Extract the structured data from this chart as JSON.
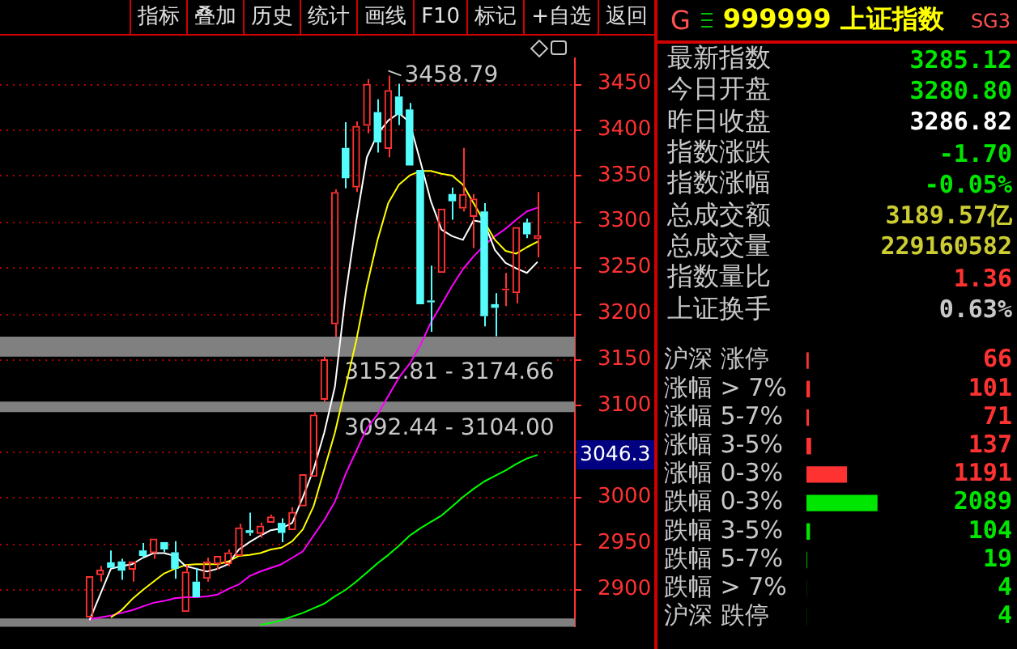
{
  "chart_data": [
    {
      "type": "other",
      "annotations": [
        "指标",
        "叠加",
        "历史",
        "统计",
        "画线",
        "F10",
        "标记",
        "+自选",
        "返回"
      ]
    },
    {
      "type": "candlestick",
      "categories": [
        null,
        null,
        null,
        null,
        null,
        null,
        null,
        null,
        null,
        null,
        null,
        null,
        null,
        null,
        null,
        null,
        null,
        null,
        null,
        null,
        null,
        null,
        null,
        null,
        null,
        null,
        null,
        null,
        null,
        null,
        null,
        null,
        null,
        null,
        null,
        null,
        null,
        null,
        null,
        null,
        null,
        null,
        null,
        null,
        null,
        null
      ],
      "ohlc": [
        [
          2869,
          2914,
          2869,
          2914
        ],
        [
          2915,
          2925,
          2908,
          2921
        ],
        [
          2929,
          2942,
          2923,
          2923
        ],
        [
          2930,
          2933,
          2910,
          2920
        ],
        [
          2921,
          2930,
          2908,
          2930
        ],
        [
          2942,
          2950,
          2934,
          2936
        ],
        [
          2939,
          2955,
          2933,
          2955
        ],
        [
          2951,
          2951,
          2940,
          2943
        ],
        [
          2940,
          2952,
          2911,
          2922
        ],
        [
          2875,
          2926,
          2875,
          2919
        ],
        [
          2908,
          2923,
          2891,
          2891
        ],
        [
          2911,
          2934,
          2908,
          2930
        ],
        [
          2927,
          2936,
          2921,
          2936
        ],
        [
          2927,
          2943,
          2925,
          2940
        ],
        [
          2936,
          2971,
          2936,
          2967
        ],
        [
          2964,
          2983,
          2958,
          2961
        ],
        [
          2960,
          2972,
          2956,
          2969
        ],
        [
          2972,
          2981,
          2972,
          2979
        ],
        [
          2972,
          2977,
          2951,
          2961
        ],
        [
          2964,
          2989,
          2964,
          2984
        ],
        [
          2990,
          3025,
          2990,
          3025
        ],
        [
          3022,
          3092.44,
          3022,
          3090
        ],
        [
          3106,
          3152.81,
          3104,
          3150
        ],
        [
          3188,
          3335,
          3174.66,
          3332
        ],
        [
          3380,
          3408,
          3336,
          3347
        ],
        [
          3337,
          3409,
          3332,
          3404
        ],
        [
          3404,
          3455,
          3396,
          3450
        ],
        [
          3419,
          3433,
          3375,
          3386
        ],
        [
          3379,
          3458.79,
          3370,
          3443
        ],
        [
          3436,
          3450,
          3405,
          3416
        ],
        [
          3422,
          3429,
          3361,
          3361
        ],
        [
          3356,
          3356,
          3210,
          3210
        ],
        [
          3214,
          3252,
          3180,
          3212
        ],
        [
          3244,
          3314,
          3244,
          3314
        ],
        [
          3330,
          3337,
          3302,
          3322
        ],
        [
          3314,
          3380,
          3311,
          3330
        ],
        [
          3305,
          3330,
          3271,
          3325
        ],
        [
          3311,
          3320,
          3186,
          3197
        ],
        [
          3210,
          3222,
          3175,
          3206
        ],
        [
          3225,
          3244,
          3208,
          3227
        ],
        [
          3222,
          3294,
          3211,
          3294
        ],
        [
          3299,
          3303,
          3282,
          3286
        ],
        [
          3280.8,
          3332,
          3261,
          3285.12
        ],
        null,
        null,
        null
      ],
      "colors": [
        "#ff3232",
        "#ff3232",
        "#54fcfc",
        "#54fcfc",
        "#ff3232",
        "#54fcfc",
        "#ff3232",
        "#54fcfc",
        "#54fcfc",
        "#ff3232",
        "#54fcfc",
        "#ff3232",
        "#ff3232",
        "#ff3232",
        "#ff3232",
        "#54fcfc",
        "#ff3232",
        "#ff3232",
        "#54fcfc",
        "#ff3232",
        "#ff3232",
        "#ff3232",
        "#ff3232",
        "#ff3232",
        "#54fcfc",
        "#ff3232",
        "#ff3232",
        "#54fcfc",
        "#ff3232",
        "#54fcfc",
        "#54fcfc",
        "#54fcfc",
        "#54fcfc",
        "#ff3232",
        "#54fcfc",
        "#ff3232",
        "#ff3232",
        "#54fcfc",
        "#54fcfc",
        "#ff3232",
        "#ff3232",
        "#54fcfc",
        "#ff3232",
        null,
        null,
        null
      ],
      "series": [
        {
          "type": "line",
          "color": "#ffffff",
          "values": [
            2866,
            2894,
            2922,
            2925,
            2927,
            2934,
            2939,
            2939,
            2936,
            2925,
            2922,
            2919,
            2922,
            2927,
            2943,
            2951,
            2958,
            2964,
            2966,
            2972,
            3000,
            3030,
            3070,
            3120,
            3220,
            3300,
            3370,
            3395,
            3410,
            3418,
            3408,
            3366,
            3322,
            3291,
            3284,
            3280,
            3301,
            3299,
            3269,
            3255,
            3249,
            3244,
            3256,
            null,
            null,
            null
          ]
        },
        {
          "type": "line",
          "color": "#ffff00",
          "values": [
            null,
            null,
            2869,
            2877,
            2889,
            2899,
            2908,
            2917,
            2922,
            2926,
            2927,
            2927,
            2927,
            2930,
            2936,
            2937,
            2939,
            2943,
            2945,
            2952,
            2965,
            2990,
            3030,
            3070,
            3120,
            3170,
            3230,
            3280,
            3320,
            3340,
            3350,
            3355,
            3355,
            3352,
            3350,
            3340,
            3320,
            3300,
            3280,
            3268,
            3265,
            3272,
            3278,
            null,
            null,
            null
          ]
        },
        {
          "type": "line",
          "color": "#ff00ff",
          "values": [
            2867,
            2869,
            2871,
            2874,
            2877,
            2881,
            2885,
            2887,
            2890,
            2891,
            2891,
            2892,
            2894,
            2900,
            2905,
            2914,
            2919,
            2923,
            2927,
            2934,
            2941,
            2958,
            2975,
            2995,
            3025,
            3050,
            3075,
            3090,
            3110,
            3130,
            3145,
            3165,
            3190,
            3210,
            3230,
            3248,
            3262,
            3274,
            3284,
            3292,
            3302,
            3311,
            3315,
            null,
            null,
            null
          ]
        },
        {
          "type": "line",
          "color": "#00ff00",
          "values": [
            null,
            null,
            null,
            null,
            null,
            null,
            null,
            null,
            null,
            null,
            null,
            null,
            null,
            null,
            null,
            null,
            2861,
            2863,
            2866,
            2870,
            2874,
            2879,
            2884,
            2892,
            2899,
            2908,
            2918,
            2928,
            2937,
            2947,
            2958,
            2966,
            2973,
            2980,
            2990,
            3000,
            3009,
            3017,
            3023,
            3029,
            3036,
            3042,
            3046,
            null,
            null,
            null
          ]
        }
      ],
      "ylim": [
        2859,
        3478
      ],
      "yticks": [
        2900,
        2950,
        3000,
        {
          "value": 3050,
          "label": null
        },
        3100,
        3150,
        3200,
        3250,
        3300,
        3350,
        3400,
        3450
      ],
      "grid": "y",
      "tick_labels": "y",
      "bands": [
        {
          "axis": "y",
          "from": 3152.81,
          "to": 3174.66,
          "label": "3152.81 - 3174.66",
          "color": "#808080"
        },
        {
          "axis": "y",
          "from": 3092.44,
          "to": 3104,
          "label": "3092.44 - 3104.00",
          "color": "#808080"
        },
        {
          "axis": "y",
          "from": 2859,
          "to": 2868,
          "color": "#808080"
        }
      ],
      "annotations": [
        "3458.79",
        "3046.3"
      ]
    },
    {
      "type": "other",
      "title": "999999 上证指数",
      "annotations": [
        "G",
        "SG3"
      ],
      "categories": [
        "最新指数",
        "今日开盘",
        "昨日收盘",
        "指数涨跌",
        "指数涨幅",
        "总成交额",
        "总成交量",
        "指数量比",
        "上证换手"
      ],
      "value_labels": [
        "3285.12",
        "3280.80",
        "3286.82",
        "-1.70",
        "-0.05%",
        "3189.57亿",
        "229160582",
        "1.36",
        "0.63%"
      ],
      "colors": [
        "#00e600",
        "#00e600",
        "#ffffff",
        "#00e600",
        "#00e600",
        "#cccc33",
        "#cccc33",
        "#ff3232",
        "#c8c8c8"
      ]
    },
    {
      "type": "bar",
      "orientation": "horizontal",
      "data_labels": true,
      "categories": [
        "沪深 涨停",
        "涨幅 > 7%",
        "涨幅 5-7%",
        "涨幅 3-5%",
        "涨幅 0-3%",
        "跌幅 0-3%",
        "跌幅 3-5%",
        "跌幅 5-7%",
        "跌幅 > 7%",
        "沪深 跌停"
      ],
      "values": [
        66,
        101,
        71,
        137,
        1191,
        2089,
        104,
        19,
        4,
        4
      ],
      "colors": [
        "#ff3232",
        "#ff3232",
        "#ff3232",
        "#ff3232",
        "#ff3232",
        "#00e600",
        "#00e600",
        "#00e600",
        "#00e600",
        "#00e600"
      ]
    }
  ]
}
